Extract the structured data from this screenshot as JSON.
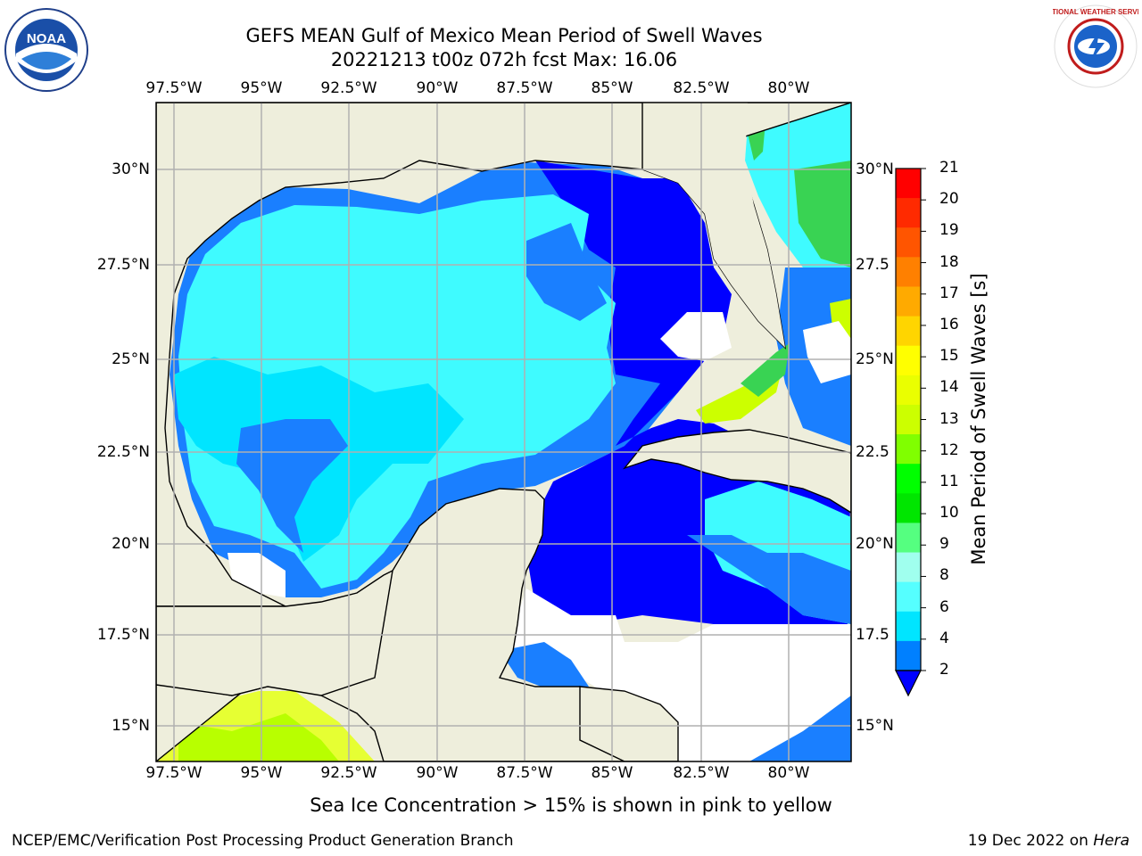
{
  "title": "GEFS MEAN Gulf of Mexico Mean Period of Swell Waves",
  "subtitle_line": "20221213 t00z 072h fcst   Max: 16.06",
  "logos": {
    "left": "NOAA",
    "right": "NATIONAL WEATHER SERVICE"
  },
  "map": {
    "lon_labels": [
      "97.5°W",
      "95°W",
      "92.5°W",
      "90°W",
      "87.5°W",
      "85°W",
      "82.5°W",
      "80°W"
    ],
    "lat_labels_left": [
      "30°N",
      "27.5°N",
      "25°N",
      "22.5°N",
      "20°N",
      "17.5°N",
      "15°N"
    ],
    "lat_labels_right": [
      "30°N",
      "27.5",
      "25°N",
      "22.5",
      "20°N",
      "17.5",
      "15°N"
    ]
  },
  "colorbar": {
    "label": "Mean Period of Swell Waves [s]",
    "ticks": [
      "21",
      "20",
      "19",
      "18",
      "17",
      "16",
      "15",
      "14",
      "13",
      "12",
      "11",
      "10",
      "9",
      "8",
      "6",
      "4",
      "2"
    ],
    "colors": [
      "#ff0000",
      "#ff2a00",
      "#ff5500",
      "#ff8000",
      "#ffaa00",
      "#ffd500",
      "#ffff00",
      "#eaff00",
      "#ccff00",
      "#80ff00",
      "#00ff00",
      "#00e600",
      "#55ff80",
      "#a0ffee",
      "#55ffff",
      "#00e5ff",
      "#0080ff",
      "#0000ff"
    ]
  },
  "colors": {
    "land": "#eeeedc",
    "ocean_deep": "#0000ff",
    "ocean_mid": "#1a7fff",
    "ocean_cyan": "#3ffbff",
    "ocean_light": "#00e5ff",
    "green": "#39d353",
    "yellow_green": "#ccff00",
    "grid": "#b0b0b0"
  },
  "sea_ice_note": "Sea Ice Concentration > 15% is shown in pink to yellow",
  "footer": {
    "left": "NCEP/EMC/Verification Post Processing Product Generation Branch",
    "date": "19 Dec 2022 on ",
    "host": "Hera"
  }
}
